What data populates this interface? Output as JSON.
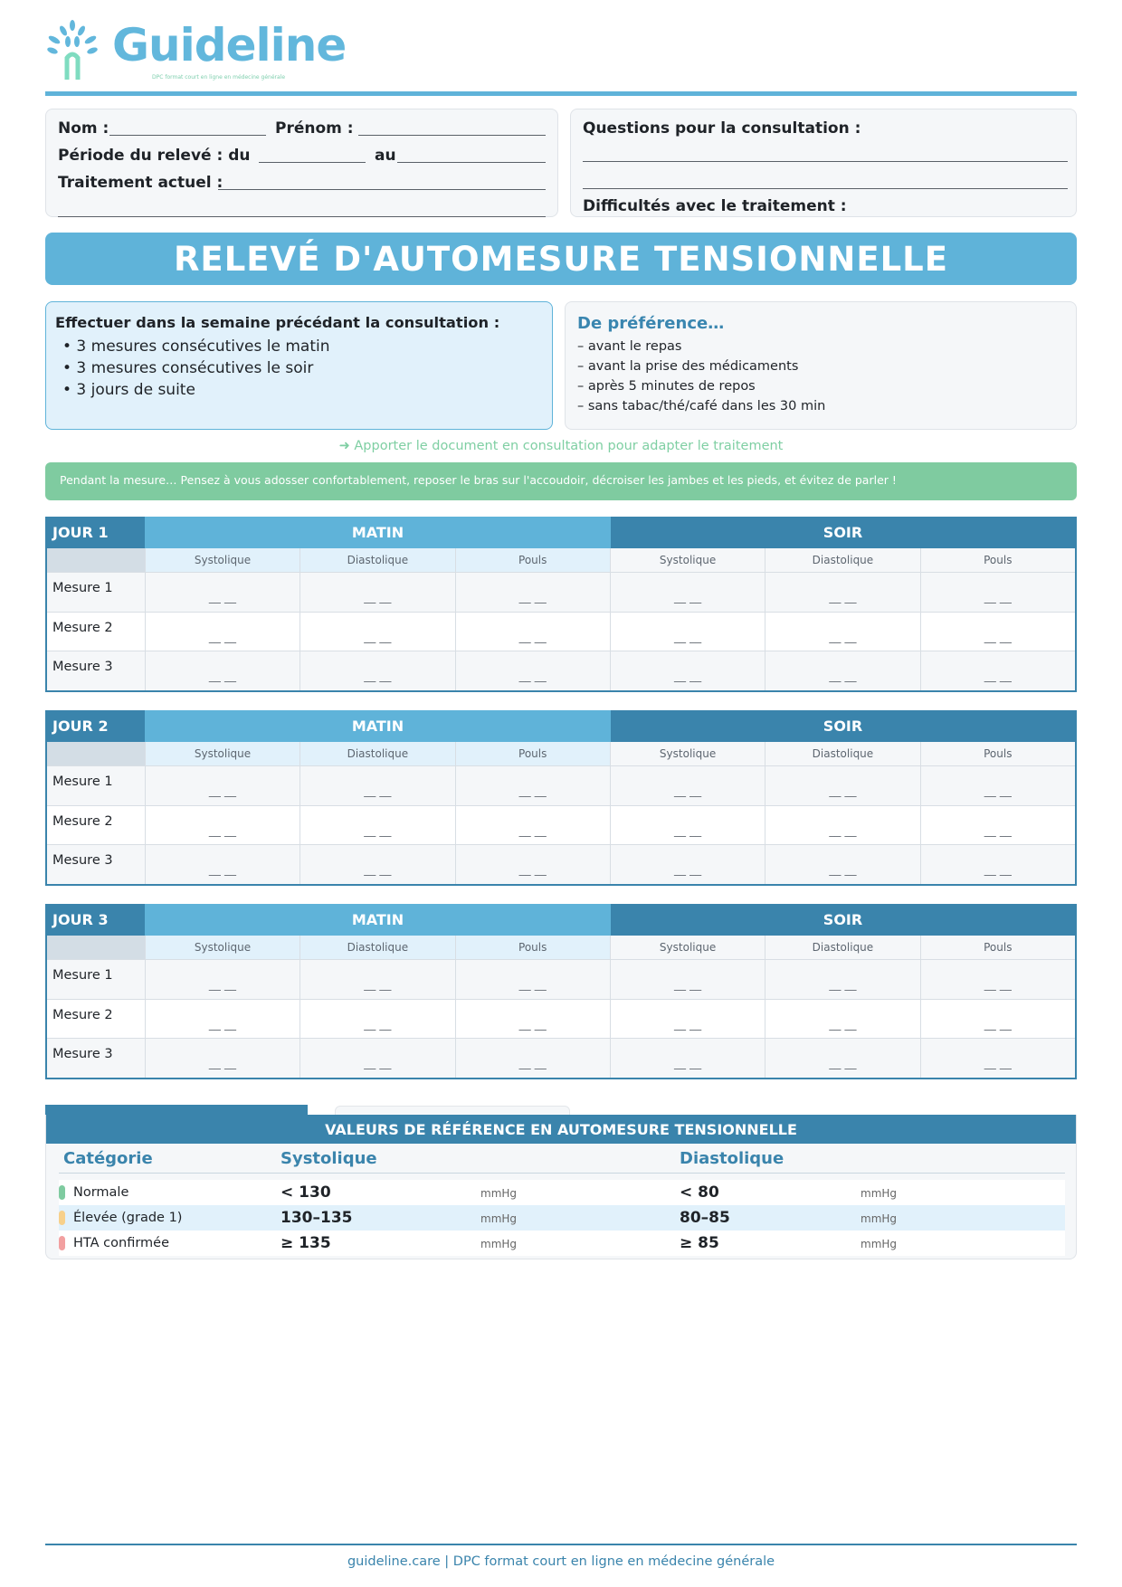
{
  "logo": {
    "name": "Guideline",
    "tagline": "DPC format court en ligne en médecine générale"
  },
  "patient": {
    "nom": "Nom :",
    "prenom": "Prénom :",
    "periode": "Période du relevé : du",
    "au": "au",
    "traitement": "Traitement actuel :"
  },
  "questions": {
    "title": "Questions pour la consultation :",
    "difficultes": "Difficultés avec le traitement :"
  },
  "banner": "RELEVÉ D'AUTOMESURE TENSIONNELLE",
  "instructions": {
    "title": "Effectuer dans la semaine précédant la consultation :",
    "items": [
      "• 3 mesures consécutives le matin",
      "• 3 mesures consécutives le soir",
      "• 3 jours de suite"
    ]
  },
  "preference": {
    "title": "De préférence…",
    "items": [
      "– avant le repas",
      "– avant la prise des médicaments",
      "– après 5 minutes de repos",
      "– sans tabac/thé/café dans les 30 min"
    ]
  },
  "reminder": "➜  Apporter le document en consultation pour adapter le traitement",
  "tip": "Pendant la mesure…  Pensez à vous adosser confortablement, reposer le bras sur l'accoudoir, décroiser les jambes et les pieds, et évitez de parler !",
  "tables": {
    "days": [
      "JOUR 1",
      "JOUR 2",
      "JOUR 3"
    ],
    "matin": "MATIN",
    "soir": "SOIR",
    "columns": [
      "Systolique",
      "Diastolique",
      "Pouls"
    ],
    "rows": [
      "Mesure 1",
      "Mesure 2",
      "Mesure 3"
    ],
    "blank": "__ __"
  },
  "reference": {
    "title": "VALEURS DE RÉFÉRENCE EN AUTOMESURE TENSIONNELLE",
    "headers": [
      "Catégorie",
      "Systolique",
      "Diastolique"
    ],
    "unit": "mmHg",
    "rows": [
      {
        "cat": "Normale",
        "sys": "< 130",
        "dia": "< 80",
        "color": "#7fcba0"
      },
      {
        "cat": "Élevée (grade 1)",
        "sys": "130–135",
        "dia": "80–85",
        "color": "#f7d08a"
      },
      {
        "cat": "HTA confirmée",
        "sys": "≥ 135",
        "dia": "≥ 85",
        "color": "#f2a0a0"
      }
    ]
  },
  "footer": "guideline.care  |  DPC format court en ligne en médecine générale"
}
